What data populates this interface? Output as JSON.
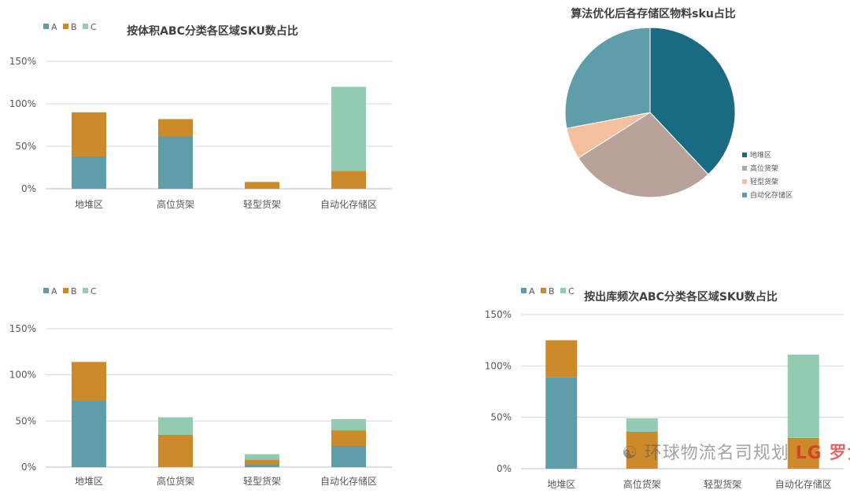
{
  "colors": {
    "A": "#5f9ea8",
    "B": "#cd8a2a",
    "C": "#92cbb2",
    "grid": "#d9d9d9",
    "axis": "#bfbfbf",
    "text": "#595959",
    "title": "#404040"
  },
  "legend_labels": [
    "A",
    "B",
    "C"
  ],
  "chart_data": [
    {
      "type": "bar",
      "stacked": true,
      "title": "按体积ABC分类各区域SKU数占比",
      "categories": [
        "地堆区",
        "高位货架",
        "轻型货架",
        "自动化存储区"
      ],
      "series": [
        {
          "name": "A",
          "values": [
            38,
            62,
            0,
            0
          ]
        },
        {
          "name": "B",
          "values": [
            52,
            20,
            8,
            21
          ]
        },
        {
          "name": "C",
          "values": [
            0,
            0,
            0,
            99
          ]
        }
      ],
      "y_ticks": [
        "0%",
        "50%",
        "100%",
        "150%"
      ],
      "ylim": [
        0,
        150
      ],
      "grid": true,
      "legend": "top-left"
    },
    {
      "type": "pie",
      "title": "算法优化后各存储区物料sku占比",
      "labels": [
        "地堆区",
        "高位货架",
        "轻型货架",
        "自动化存储区"
      ],
      "values": [
        38,
        28,
        6,
        28
      ],
      "colors": [
        "#1a6b82",
        "#b9a29a",
        "#f4c09f",
        "#5f9ea8"
      ],
      "legend": "right"
    },
    {
      "type": "bar",
      "stacked": true,
      "title": "",
      "categories": [
        "地堆区",
        "高位货架",
        "轻型货架",
        "自动化存储区"
      ],
      "series": [
        {
          "name": "A",
          "values": [
            72,
            0,
            3,
            23
          ]
        },
        {
          "name": "B",
          "values": [
            42,
            35,
            5,
            17
          ]
        },
        {
          "name": "C",
          "values": [
            0,
            19,
            6,
            12
          ]
        }
      ],
      "y_ticks": [
        "0%",
        "50%",
        "100%",
        "150%"
      ],
      "ylim": [
        0,
        150
      ],
      "grid": true,
      "legend": "top-left"
    },
    {
      "type": "bar",
      "stacked": true,
      "title": "按出库频次ABC分类各区域SKU数占比",
      "categories": [
        "地堆区",
        "高位货架",
        "轻型货架",
        "自动化存储区"
      ],
      "series": [
        {
          "name": "A",
          "values": [
            89,
            0,
            0,
            0
          ]
        },
        {
          "name": "B",
          "values": [
            36,
            36,
            0,
            30
          ]
        },
        {
          "name": "C",
          "values": [
            0,
            13,
            0,
            81
          ]
        }
      ],
      "y_ticks": [
        "0%",
        "50%",
        "100%",
        "150%"
      ],
      "ylim": [
        0,
        150
      ],
      "grid": true,
      "legend": "top-left"
    }
  ],
  "watermark": {
    "text": "环球物流名司规划",
    "brand": "LG 罗戈网"
  }
}
